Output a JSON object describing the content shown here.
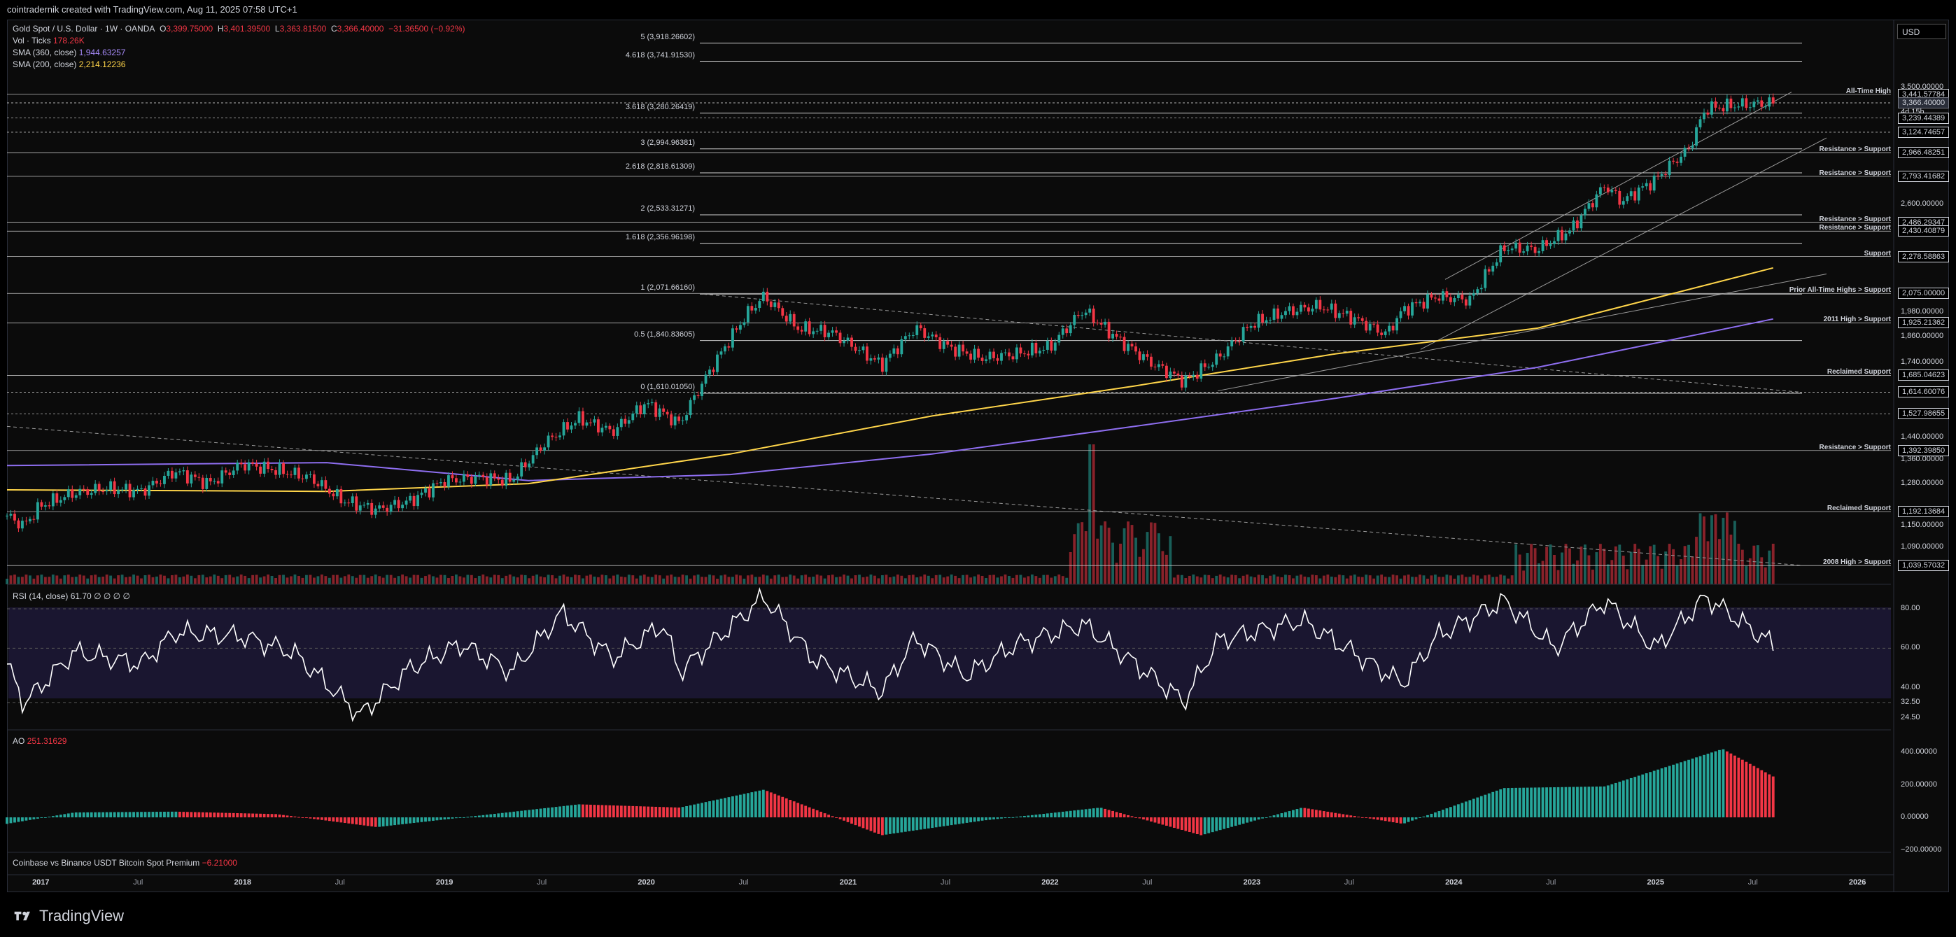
{
  "header": {
    "attribution": "cointradernik created with TradingView.com, Aug 11, 2025 07:58 UTC+1"
  },
  "legend": {
    "symbol": "Gold Spot / U.S. Dollar · 1W · OANDA",
    "open_label": "O",
    "open": "3,399.75000",
    "high_label": "H",
    "high": "3,401.39500",
    "low_label": "L",
    "low": "3,363.81500",
    "close_label": "C",
    "close": "3,366.40000",
    "change": "−31.36500 (−0.92%)",
    "vol_label": "Vol · Ticks",
    "vol": "178.26K",
    "sma360_label": "SMA (360, close)",
    "sma360": "1,944.63257",
    "sma200_label": "SMA (200, close)",
    "sma200": "2,214.12236"
  },
  "currency": "USD",
  "colors": {
    "up": "#26a69a",
    "down": "#f23645",
    "sma200": "#ffd54a",
    "sma360": "#8e6ef0",
    "rsi": "#ffffff",
    "rsi_band": "#1a1630"
  },
  "price_axis": {
    "ticks": [
      "3,500.00000",
      "2,600.00000",
      "1,980.00000",
      "1,860.00000",
      "1,740.00000",
      "1,440.00000",
      "1,360.00000",
      "1,280.00000",
      "1,150.00000",
      "1,090.00000"
    ],
    "levels": [
      {
        "value": "3,441.57784",
        "annotation": "All-Time High"
      },
      {
        "value": "3,366.60789",
        "annotation": ""
      },
      {
        "value": "3,366.40000",
        "annotation": "",
        "current": true,
        "sub": "4d 15h"
      },
      {
        "value": "3,239.44389",
        "annotation": ""
      },
      {
        "value": "3,124.74657",
        "annotation": ""
      },
      {
        "value": "2,966.48251",
        "annotation": "Resistance > Support"
      },
      {
        "value": "2,793.41682",
        "annotation": "Resistance > Support"
      },
      {
        "value": "2,486.29347",
        "annotation": "Resistance > Support"
      },
      {
        "value": "2,430.40879",
        "annotation": "Resistance > Support"
      },
      {
        "value": "2,278.58863",
        "annotation": "Support"
      },
      {
        "value": "2,075.00000",
        "annotation": "Prior All-Time Highs > Support"
      },
      {
        "value": "1,925.21362",
        "annotation": "2011 High > Support"
      },
      {
        "value": "1,685.04623",
        "annotation": "Reclaimed Support"
      },
      {
        "value": "1,614.60076",
        "annotation": ""
      },
      {
        "value": "1,527.98655",
        "annotation": ""
      },
      {
        "value": "1,392.39850",
        "annotation": "Resistance > Support"
      },
      {
        "value": "1,192.13684",
        "annotation": "Reclaimed Support"
      },
      {
        "value": "1,039.57032",
        "annotation": "2008 High > Support"
      }
    ]
  },
  "fib_levels": [
    {
      "label": "5 (3,918.26602)"
    },
    {
      "label": "4.618 (3,741.91530)"
    },
    {
      "label": "3.618 (3,280.26419)"
    },
    {
      "label": "3 (2,994.96381)"
    },
    {
      "label": "2.618 (2,818.61309)"
    },
    {
      "label": "2 (2,533.31271)"
    },
    {
      "label": "1.618 (2,356.96198)"
    },
    {
      "label": "1 (2,071.66160)"
    },
    {
      "label": "0.5 (1,840.83605)"
    },
    {
      "label": "0 (1,610.01050)"
    }
  ],
  "rsi": {
    "title": "RSI (14, close)",
    "value": "61.70",
    "extra": "∅ ∅ ∅ ∅",
    "ticks": [
      "80.00",
      "60.00",
      "40.00",
      "32.50",
      "24.50"
    ]
  },
  "ao": {
    "title": "AO",
    "value": "251.31629",
    "ticks": [
      "400.00000",
      "200.00000",
      "0.00000",
      "−200.00000"
    ]
  },
  "premium": {
    "title": "Coinbase vs Binance USDT Bitcoin Spot Premium",
    "value": "−6.21000"
  },
  "time_axis": [
    {
      "label": "2017",
      "year": true
    },
    {
      "label": "Jul",
      "year": false
    },
    {
      "label": "2018",
      "year": true
    },
    {
      "label": "Jul",
      "year": false
    },
    {
      "label": "2019",
      "year": true
    },
    {
      "label": "Jul",
      "year": false
    },
    {
      "label": "2020",
      "year": true
    },
    {
      "label": "Jul",
      "year": false
    },
    {
      "label": "2021",
      "year": true
    },
    {
      "label": "Jul",
      "year": false
    },
    {
      "label": "2022",
      "year": true
    },
    {
      "label": "Jul",
      "year": false
    },
    {
      "label": "2023",
      "year": true
    },
    {
      "label": "Jul",
      "year": false
    },
    {
      "label": "2024",
      "year": true
    },
    {
      "label": "Jul",
      "year": false
    },
    {
      "label": "2025",
      "year": true
    },
    {
      "label": "Jul",
      "year": false
    },
    {
      "label": "2026",
      "year": true
    }
  ],
  "branding": {
    "name": "TradingView"
  },
  "chart_data": {
    "type": "candlestick",
    "symbol": "Gold Spot / U.S. Dollar",
    "interval": "1W",
    "x_range": [
      "2016-11",
      "2026-03"
    ],
    "y_scale": "log",
    "close_series": [
      [
        "2016-11",
        1180
      ],
      [
        "2016-12",
        1150
      ],
      [
        "2017-01",
        1210
      ],
      [
        "2017-03",
        1250
      ],
      [
        "2017-05",
        1265
      ],
      [
        "2017-07",
        1255
      ],
      [
        "2017-09",
        1320
      ],
      [
        "2017-11",
        1280
      ],
      [
        "2018-01",
        1345
      ],
      [
        "2018-03",
        1325
      ],
      [
        "2018-05",
        1300
      ],
      [
        "2018-07",
        1225
      ],
      [
        "2018-09",
        1198
      ],
      [
        "2018-11",
        1225
      ],
      [
        "2019-01",
        1290
      ],
      [
        "2019-03",
        1300
      ],
      [
        "2019-05",
        1290
      ],
      [
        "2019-07",
        1420
      ],
      [
        "2019-09",
        1510
      ],
      [
        "2019-11",
        1460
      ],
      [
        "2020-01",
        1570
      ],
      [
        "2020-03",
        1490
      ],
      [
        "2020-05",
        1730
      ],
      [
        "2020-07",
        1970
      ],
      [
        "2020-08",
        2060
      ],
      [
        "2020-10",
        1900
      ],
      [
        "2020-12",
        1880
      ],
      [
        "2021-03",
        1730
      ],
      [
        "2021-05",
        1900
      ],
      [
        "2021-07",
        1810
      ],
      [
        "2021-09",
        1760
      ],
      [
        "2021-11",
        1780
      ],
      [
        "2022-01",
        1810
      ],
      [
        "2022-03",
        1990
      ],
      [
        "2022-05",
        1850
      ],
      [
        "2022-07",
        1740
      ],
      [
        "2022-09",
        1660
      ],
      [
        "2022-11",
        1760
      ],
      [
        "2023-01",
        1920
      ],
      [
        "2023-03",
        1980
      ],
      [
        "2023-05",
        2010
      ],
      [
        "2023-07",
        1950
      ],
      [
        "2023-09",
        1870
      ],
      [
        "2023-10",
        1990
      ],
      [
        "2023-12",
        2060
      ],
      [
        "2024-02",
        2040
      ],
      [
        "2024-04",
        2330
      ],
      [
        "2024-06",
        2320
      ],
      [
        "2024-08",
        2440
      ],
      [
        "2024-10",
        2730
      ],
      [
        "2024-11",
        2620
      ],
      [
        "2025-01",
        2770
      ],
      [
        "2025-03",
        3000
      ],
      [
        "2025-04",
        3320
      ],
      [
        "2025-06",
        3350
      ],
      [
        "2025-08",
        3366.4
      ]
    ],
    "sma200_series": [
      [
        "2016-11",
        1260
      ],
      [
        "2018-06",
        1255
      ],
      [
        "2019-06",
        1280
      ],
      [
        "2020-06",
        1380
      ],
      [
        "2021-06",
        1520
      ],
      [
        "2022-06",
        1640
      ],
      [
        "2023-06",
        1780
      ],
      [
        "2024-06",
        1900
      ],
      [
        "2025-08",
        2214.12
      ]
    ],
    "sma360_series": [
      [
        "2016-11",
        1340
      ],
      [
        "2018-06",
        1350
      ],
      [
        "2019-06",
        1290
      ],
      [
        "2020-06",
        1310
      ],
      [
        "2021-06",
        1380
      ],
      [
        "2022-06",
        1480
      ],
      [
        "2023-06",
        1590
      ],
      [
        "2024-06",
        1720
      ],
      [
        "2025-08",
        1944.63
      ]
    ],
    "rsi_series": [
      [
        "2016-11",
        52
      ],
      [
        "2016-12",
        32
      ],
      [
        "2017-03",
        58
      ],
      [
        "2017-07",
        52
      ],
      [
        "2017-09",
        68
      ],
      [
        "2018-01",
        66
      ],
      [
        "2018-04",
        58
      ],
      [
        "2018-08",
        26
      ],
      [
        "2018-11",
        50
      ],
      [
        "2019-02",
        62
      ],
      [
        "2019-05",
        48
      ],
      [
        "2019-08",
        78
      ],
      [
        "2019-11",
        55
      ],
      [
        "2020-02",
        72
      ],
      [
        "2020-03",
        48
      ],
      [
        "2020-08",
        86
      ],
      [
        "2020-11",
        54
      ],
      [
        "2021-03",
        38
      ],
      [
        "2021-05",
        65
      ],
      [
        "2021-08",
        46
      ],
      [
        "2021-11",
        62
      ],
      [
        "2022-03",
        72
      ],
      [
        "2022-09",
        33
      ],
      [
        "2022-11",
        64
      ],
      [
        "2023-04",
        74
      ],
      [
        "2023-10",
        42
      ],
      [
        "2023-12",
        66
      ],
      [
        "2024-04",
        84
      ],
      [
        "2024-07",
        60
      ],
      [
        "2024-10",
        84
      ],
      [
        "2025-01",
        60
      ],
      [
        "2025-04",
        86
      ],
      [
        "2025-08",
        61.7
      ]
    ],
    "ao_series": [
      [
        "2016-11",
        -40
      ],
      [
        "2017-03",
        30
      ],
      [
        "2017-09",
        35
      ],
      [
        "2018-03",
        20
      ],
      [
        "2018-09",
        -60
      ],
      [
        "2019-03",
        10
      ],
      [
        "2019-09",
        80
      ],
      [
        "2020-03",
        60
      ],
      [
        "2020-08",
        170
      ],
      [
        "2021-03",
        -110
      ],
      [
        "2021-09",
        -20
      ],
      [
        "2022-04",
        60
      ],
      [
        "2022-10",
        -110
      ],
      [
        "2023-04",
        60
      ],
      [
        "2023-10",
        -40
      ],
      [
        "2024-04",
        180
      ],
      [
        "2024-10",
        190
      ],
      [
        "2025-05",
        420
      ],
      [
        "2025-08",
        251.32
      ]
    ]
  }
}
